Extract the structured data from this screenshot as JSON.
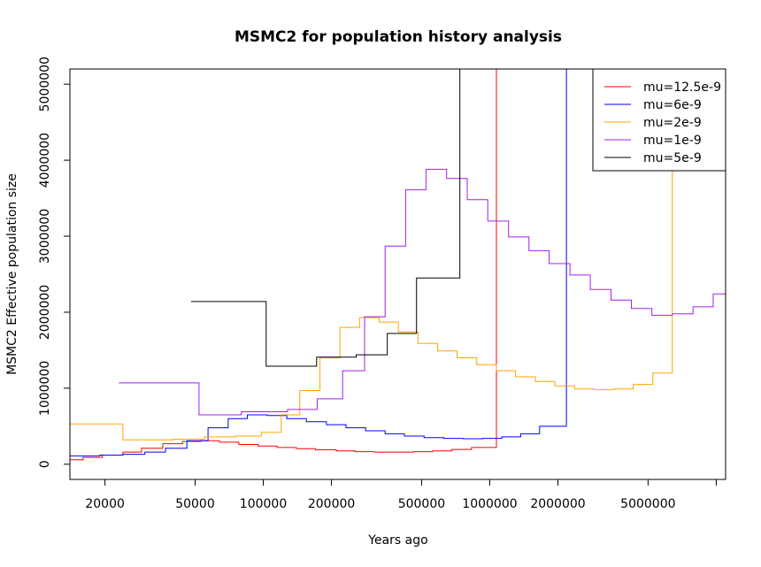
{
  "chart_data": {
    "type": "line",
    "title": "MSMC2 for population history analysis",
    "xlabel": "Years ago",
    "ylabel": "MSMC2 Effective population size",
    "x_scale": "log",
    "xlim": [
      14000,
      11000000
    ],
    "ylim": [
      -200000,
      5200000
    ],
    "x_ticks": [
      {
        "value": 20000,
        "label": "20000"
      },
      {
        "value": 50000,
        "label": "50000"
      },
      {
        "value": 100000,
        "label": "100000"
      },
      {
        "value": 200000,
        "label": "200000"
      },
      {
        "value": 500000,
        "label": "500000"
      },
      {
        "value": 1000000,
        "label": "1000000"
      },
      {
        "value": 2000000,
        "label": "2000000"
      },
      {
        "value": 5000000,
        "label": "5000000"
      },
      {
        "value": 10000000,
        "label": ""
      }
    ],
    "y_ticks": [
      {
        "value": 0,
        "label": "0"
      },
      {
        "value": 1000000,
        "label": "1000000"
      },
      {
        "value": 2000000,
        "label": "2000000"
      },
      {
        "value": 3000000,
        "label": "3000000"
      },
      {
        "value": 4000000,
        "label": "4000000"
      },
      {
        "value": 5000000,
        "label": "5000000"
      }
    ],
    "legend_position": "top-right",
    "series": [
      {
        "name": "mu=12.5e-9",
        "color": "#ff0000",
        "x": [
          14000,
          16000,
          19500,
          24000,
          29000,
          36000,
          44000,
          53000,
          64000,
          78000,
          95000,
          115000,
          140000,
          170000,
          210000,
          255000,
          310000,
          380000,
          460000,
          560000,
          680000,
          830000,
          1070000,
          1070000
        ],
        "y": [
          60000,
          90000,
          120000,
          160000,
          210000,
          270000,
          300000,
          310000,
          290000,
          260000,
          240000,
          220000,
          205000,
          190000,
          175000,
          165000,
          160000,
          160000,
          165000,
          175000,
          195000,
          220000,
          250000,
          5200000
        ]
      },
      {
        "name": "mu=6e-9",
        "color": "#0000ff",
        "x": [
          14000,
          19000,
          24000,
          30000,
          37000,
          46000,
          57000,
          70000,
          85000,
          104000,
          127000,
          155000,
          190000,
          232000,
          283000,
          345000,
          420000,
          513000,
          626000,
          764000,
          932000,
          1130000,
          1370000,
          1660000,
          2180000,
          2180000
        ],
        "y": [
          110000,
          120000,
          130000,
          160000,
          210000,
          310000,
          480000,
          600000,
          650000,
          640000,
          600000,
          560000,
          520000,
          480000,
          440000,
          400000,
          370000,
          350000,
          340000,
          335000,
          340000,
          360000,
          400000,
          500000,
          520000,
          5200000
        ]
      },
      {
        "name": "mu=2e-9",
        "color": "#ffa500",
        "x": [
          14000,
          24000,
          40000,
          55000,
          75000,
          98000,
          120000,
          145000,
          178000,
          218000,
          266000,
          325000,
          395000,
          482000,
          589000,
          718000,
          876000,
          1070000,
          1300000,
          1590000,
          1940000,
          2370000,
          2890000,
          3530000,
          4300000,
          5250000,
          6400000,
          6400000
        ],
        "y": [
          530000,
          320000,
          330000,
          360000,
          370000,
          420000,
          650000,
          970000,
          1400000,
          1800000,
          1930000,
          1870000,
          1740000,
          1590000,
          1490000,
          1400000,
          1310000,
          1230000,
          1150000,
          1090000,
          1030000,
          990000,
          980000,
          990000,
          1050000,
          1200000,
          1540000,
          4150000
        ]
      },
      {
        "name": "mu=1e-9",
        "color": "#a020f0",
        "x": [
          23000,
          52000,
          80000,
          128000,
          173000,
          224000,
          280000,
          345000,
          425000,
          523000,
          645000,
          795000,
          980000,
          1210000,
          1490000,
          1830000,
          2260000,
          2780000,
          3430000,
          4220000,
          5200000,
          6400000,
          7900000,
          9700000,
          11000000
        ],
        "y": [
          1070000,
          650000,
          690000,
          720000,
          860000,
          1230000,
          1940000,
          2870000,
          3610000,
          3880000,
          3760000,
          3480000,
          3200000,
          2990000,
          2810000,
          2640000,
          2490000,
          2300000,
          2160000,
          2050000,
          1960000,
          1980000,
          2070000,
          2240000,
          3080000
        ]
      },
      {
        "name": "mu=5e-9",
        "color": "#000000",
        "x": [
          48000,
          103000,
          172000,
          257000,
          353000,
          475000,
          738000,
          738000
        ],
        "y": [
          2140000,
          1290000,
          1410000,
          1440000,
          1720000,
          2450000,
          3870000,
          5200000
        ]
      }
    ]
  }
}
